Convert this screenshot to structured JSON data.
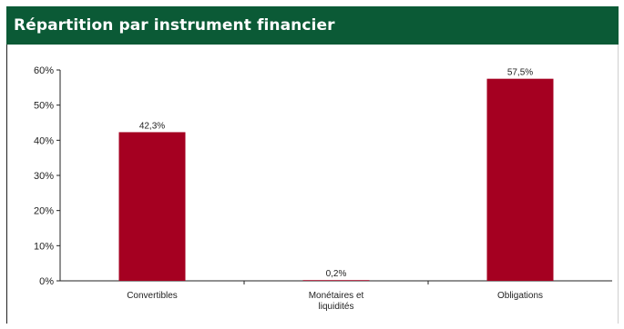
{
  "chart_data": {
    "type": "bar",
    "title": "Répartition par instrument financier",
    "categories": [
      "Convertibles",
      "Monétaires et liquidités",
      "Obligations"
    ],
    "category_lines": [
      [
        "Convertibles"
      ],
      [
        "Monétaires et",
        "liquidités"
      ],
      [
        "Obligations"
      ]
    ],
    "values": [
      42.3,
      0.2,
      57.5
    ],
    "data_labels": [
      "42,3%",
      "0,2%",
      "57,5%"
    ],
    "ylim": [
      0,
      60
    ],
    "yticks": [
      0,
      10,
      20,
      30,
      40,
      50,
      60
    ],
    "ytick_labels": [
      "0%",
      "10%",
      "20%",
      "30%",
      "40%",
      "50%",
      "60%"
    ],
    "xlabel": "",
    "ylabel": "",
    "grid": false,
    "bar_color": "#a50021",
    "header_color": "#0b5a36"
  }
}
